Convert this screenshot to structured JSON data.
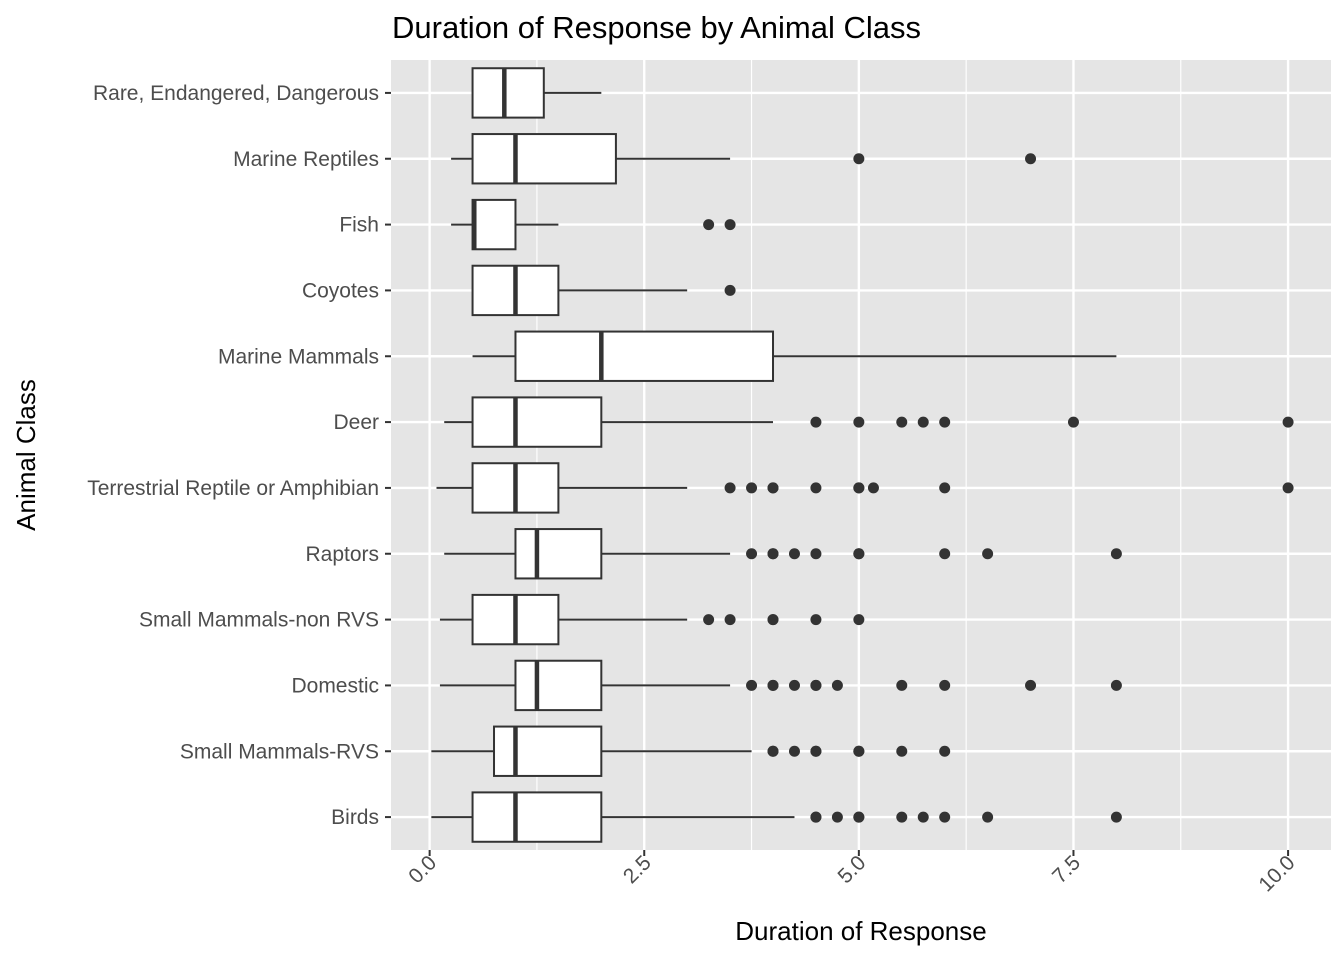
{
  "chart_data": {
    "type": "boxplot",
    "orientation": "horizontal",
    "title": "Duration of Response by Animal Class",
    "xlabel": "Duration of Response",
    "ylabel": "Animal Class",
    "xlim": [
      -0.45,
      10.5
    ],
    "xticks": [
      0,
      2.5,
      5,
      7.5,
      10
    ],
    "xtick_labels": [
      "0.0",
      "2.5",
      "5.0",
      "7.5",
      "10.0"
    ],
    "grid": true,
    "panel_background": "#e5e5e5",
    "grid_color": "#ffffff",
    "box_fill": "#ffffff",
    "line_color": "#333333",
    "categories": [
      "Rare, Endangered, Dangerous",
      "Marine Reptiles",
      "Fish",
      "Coyotes",
      "Marine Mammals",
      "Deer",
      "Terrestrial Reptile or Amphibian",
      "Raptors",
      "Small Mammals-non RVS",
      "Domestic",
      "Small Mammals-RVS",
      "Birds"
    ],
    "boxes": [
      {
        "whisker_low": 0.5,
        "q1": 0.5,
        "median": 0.87,
        "q3": 1.33,
        "whisker_high": 2.0,
        "outliers": []
      },
      {
        "whisker_low": 0.25,
        "q1": 0.5,
        "median": 1.0,
        "q3": 2.17,
        "whisker_high": 3.5,
        "outliers": [
          5.0,
          7.0
        ]
      },
      {
        "whisker_low": 0.25,
        "q1": 0.5,
        "median": 0.52,
        "q3": 1.0,
        "whisker_high": 1.5,
        "outliers": [
          3.25,
          3.5
        ]
      },
      {
        "whisker_low": 0.5,
        "q1": 0.5,
        "median": 1.0,
        "q3": 1.5,
        "whisker_high": 3.0,
        "outliers": [
          3.5
        ]
      },
      {
        "whisker_low": 0.5,
        "q1": 1.0,
        "median": 2.0,
        "q3": 4.0,
        "whisker_high": 8.0,
        "outliers": []
      },
      {
        "whisker_low": 0.17,
        "q1": 0.5,
        "median": 1.0,
        "q3": 2.0,
        "whisker_high": 4.0,
        "outliers": [
          4.5,
          5.0,
          5.5,
          5.75,
          6.0,
          7.5,
          10.0
        ]
      },
      {
        "whisker_low": 0.08,
        "q1": 0.5,
        "median": 1.0,
        "q3": 1.5,
        "whisker_high": 3.0,
        "outliers": [
          3.5,
          3.75,
          4.0,
          4.0,
          4.5,
          5.0,
          5.0,
          5.17,
          6.0,
          10.0
        ]
      },
      {
        "whisker_low": 0.17,
        "q1": 1.0,
        "median": 1.25,
        "q3": 2.0,
        "whisker_high": 3.5,
        "outliers": [
          3.75,
          4.0,
          4.0,
          4.25,
          4.5,
          5.0,
          5.0,
          6.0,
          6.5,
          8.0
        ]
      },
      {
        "whisker_low": 0.12,
        "q1": 0.5,
        "median": 1.0,
        "q3": 1.5,
        "whisker_high": 3.0,
        "outliers": [
          3.25,
          3.5,
          4.0,
          4.0,
          4.5,
          5.0
        ]
      },
      {
        "whisker_low": 0.12,
        "q1": 1.0,
        "median": 1.25,
        "q3": 2.0,
        "whisker_high": 3.5,
        "outliers": [
          3.75,
          4.0,
          4.0,
          4.25,
          4.5,
          4.5,
          4.75,
          5.5,
          6.0,
          7.0,
          8.0
        ]
      },
      {
        "whisker_low": 0.02,
        "q1": 0.75,
        "median": 1.0,
        "q3": 2.0,
        "whisker_high": 3.75,
        "outliers": [
          4.0,
          4.0,
          4.25,
          4.5,
          4.5,
          5.0,
          5.0,
          5.5,
          6.0
        ]
      },
      {
        "whisker_low": 0.02,
        "q1": 0.5,
        "median": 1.0,
        "q3": 2.0,
        "whisker_high": 4.25,
        "outliers": [
          4.5,
          4.5,
          4.75,
          5.0,
          5.0,
          5.5,
          5.75,
          6.0,
          6.5,
          8.0
        ]
      }
    ]
  }
}
